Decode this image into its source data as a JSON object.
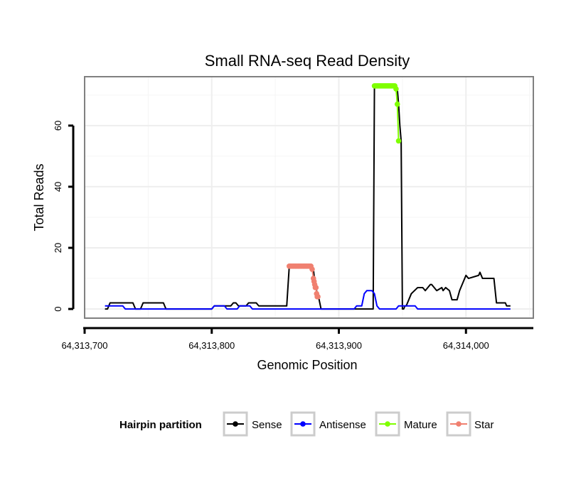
{
  "chart_data": {
    "type": "line",
    "title": "Small RNA-seq Read Density",
    "xlabel": "Genomic Position",
    "ylabel": "Total Reads",
    "xlim": [
      64313700,
      64314053
    ],
    "ylim": [
      -3,
      76
    ],
    "x_ticks": [
      64313700,
      64313800,
      64313900,
      64314000
    ],
    "x_tick_labels": [
      "64,313,700",
      "64,313,800",
      "64,313,900",
      "64,314,000"
    ],
    "y_ticks": [
      0,
      20,
      40,
      60
    ],
    "y_tick_labels": [
      "0",
      "20",
      "40",
      "60"
    ],
    "grid": true,
    "legend_position": "bottom",
    "legend_title": "Hairpin partition",
    "legend_entries": [
      "Sense",
      "Antisense",
      "Mature",
      "Star"
    ],
    "colors": {
      "Sense": "#000000",
      "Antisense": "#0000ff",
      "Mature": "#7fff00",
      "Star": "#f08070"
    },
    "series": [
      {
        "name": "Sense",
        "x": [
          64313716,
          64313718,
          64313720,
          64313738,
          64313740,
          64313744,
          64313746,
          64313762,
          64313764,
          64313800,
          64313802,
          64313815,
          64313817,
          64313819,
          64313821,
          64313827,
          64313829,
          64313835,
          64313837,
          64313840,
          64313842,
          64313859,
          64313861,
          64313872,
          64313880,
          64313881,
          64313882,
          64313883,
          64313884,
          64313886,
          64313890,
          64313909,
          64313910,
          64313920,
          64313927,
          64313928,
          64313930,
          64313943,
          64313945,
          64313946,
          64313947,
          64313948,
          64313949,
          64313950,
          64313951,
          64313952,
          64313953,
          64313954,
          64313955,
          64313957,
          64313962,
          64313966,
          64313968,
          64313972,
          64313973,
          64313977,
          64313981,
          64313982,
          64313984,
          64313987,
          64313989,
          64313993,
          64313995,
          64313997,
          64313998,
          64314000,
          64314002,
          64314010,
          64314011,
          64314013,
          64314015,
          64314022,
          64314024,
          64314031,
          64314032,
          64314035
        ],
        "values": [
          0,
          0,
          2,
          2,
          0,
          0,
          2,
          2,
          0,
          0,
          1,
          1,
          2,
          2,
          1,
          1,
          2,
          2,
          1,
          1,
          1,
          1,
          14,
          14,
          13,
          9,
          7,
          5,
          4,
          0,
          0,
          0,
          0,
          0,
          0,
          73,
          73,
          73,
          73,
          72,
          67,
          60,
          55,
          0,
          0,
          1,
          1,
          2,
          3,
          5,
          7,
          7,
          6,
          8,
          8,
          6,
          7,
          6,
          7,
          6,
          3,
          3,
          6,
          8,
          9,
          11,
          10,
          11,
          12,
          10,
          10,
          10,
          2,
          2,
          1,
          1
        ]
      },
      {
        "name": "Antisense",
        "x": [
          64313716,
          64313718,
          64313730,
          64313732,
          64313800,
          64313802,
          64313810,
          64313812,
          64313820,
          64313822,
          64313830,
          64313832,
          64313846,
          64313848,
          64313912,
          64313914,
          64313918,
          64313920,
          64313922,
          64313926,
          64313928,
          64313930,
          64313932,
          64313945,
          64313947,
          64313960,
          64313962,
          64314035
        ],
        "values": [
          1,
          1,
          1,
          0,
          0,
          1,
          1,
          0,
          0,
          1,
          1,
          0,
          0,
          0,
          0,
          1,
          1,
          5,
          6,
          6,
          5,
          1,
          0,
          0,
          1,
          1,
          0,
          0
        ]
      },
      {
        "name": "Mature",
        "x": [
          64313928,
          64313929,
          64313930,
          64313931,
          64313932,
          64313933,
          64313934,
          64313935,
          64313936,
          64313937,
          64313938,
          64313939,
          64313940,
          64313941,
          64313942,
          64313943,
          64313944,
          64313945,
          64313946,
          64313947
        ],
        "values": [
          73,
          73,
          73,
          73,
          73,
          73,
          73,
          73,
          73,
          73,
          73,
          73,
          73,
          73,
          73,
          73,
          73,
          72,
          67,
          55
        ]
      },
      {
        "name": "Star",
        "x": [
          64313861,
          64313862,
          64313863,
          64313864,
          64313865,
          64313866,
          64313867,
          64313868,
          64313869,
          64313870,
          64313871,
          64313872,
          64313873,
          64313874,
          64313875,
          64313876,
          64313877,
          64313878,
          64313879,
          64313880,
          64313880.5,
          64313881,
          64313881.5,
          64313882,
          64313882.5,
          64313883,
          64313883.5
        ],
        "values": [
          14,
          14,
          14,
          14,
          14,
          14,
          14,
          14,
          14,
          14,
          14,
          14,
          14,
          14,
          14,
          14,
          14,
          14,
          13,
          10,
          9,
          8,
          7,
          7,
          5,
          4,
          4
        ]
      }
    ]
  }
}
